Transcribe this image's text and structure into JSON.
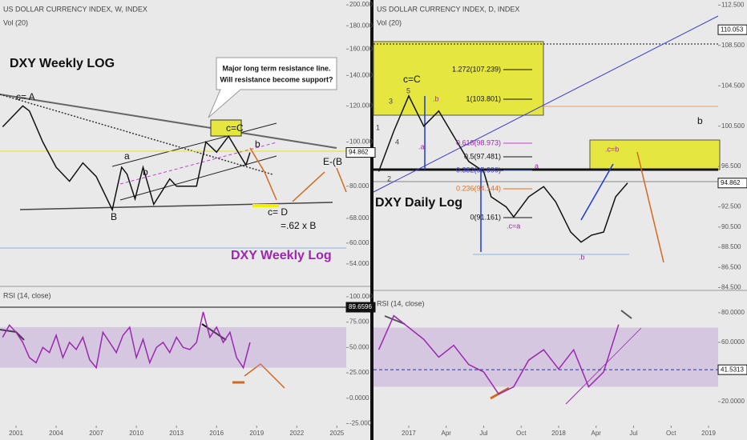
{
  "chart_data": [
    {
      "type": "line",
      "title": "US DOLLAR CURRENCY INDEX, W, INDEX",
      "subtitle": "Vol (20)",
      "log_scale": true,
      "color": "#111111",
      "x": [
        2000,
        2001.5,
        2002,
        2003,
        2004,
        2005,
        2006,
        2007,
        2008.2,
        2008.9,
        2009.3,
        2009.9,
        2010.5,
        2011.3,
        2012.5,
        2013,
        2014.5,
        2015.2,
        2016,
        2016.9,
        2017.9,
        2018.2,
        2018.5
      ],
      "values": [
        108,
        120,
        117,
        100,
        88,
        82,
        90,
        84,
        71,
        88,
        85,
        75,
        88,
        73,
        83,
        80,
        80,
        100,
        95,
        103,
        92,
        89,
        94.862
      ],
      "xlim": [
        1999.8,
        2025.7
      ],
      "ylim": [
        48.4,
        205
      ],
      "yticks": [
        {
          "value": 200,
          "label": "200.000"
        },
        {
          "value": 180,
          "label": "180.000"
        },
        {
          "value": 160,
          "label": "160.000"
        },
        {
          "value": 140,
          "label": "140.000"
        },
        {
          "value": 120,
          "label": "120.000"
        },
        {
          "value": 100,
          "label": "100.000"
        },
        {
          "value": 80,
          "label": "80.000"
        },
        {
          "value": 68,
          "label": "68.000"
        },
        {
          "value": 60,
          "label": "60.000"
        },
        {
          "value": 54,
          "label": "54.000"
        }
      ],
      "last_value": 94.862,
      "annotations": [
        "DXY  Weekly LOG",
        "Major long term resistance line.",
        "Will resistance become support?",
        "c= A",
        "a",
        "b",
        "B",
        "c=C",
        "b",
        "c= D",
        "=.62 x B",
        "E-(B",
        "DXY Weekly Log"
      ]
    },
    {
      "type": "line",
      "title": "RSI (14, close)",
      "color": "#9c27b0",
      "x": [
        2000,
        2000.5,
        2001,
        2001.5,
        2002,
        2002.5,
        2003,
        2003.5,
        2004,
        2004.5,
        2005,
        2005.5,
        2006,
        2006.5,
        2007,
        2007.5,
        2008,
        2008.5,
        2009,
        2009.5,
        2010,
        2010.5,
        2011,
        2011.5,
        2012,
        2012.5,
        2013,
        2013.5,
        2014,
        2014.5,
        2015,
        2015.5,
        2016,
        2016.5,
        2017,
        2017.5,
        2018,
        2018.5
      ],
      "values": [
        60,
        72,
        65,
        55,
        40,
        35,
        50,
        45,
        62,
        40,
        55,
        48,
        60,
        38,
        30,
        65,
        55,
        45,
        62,
        70,
        40,
        58,
        35,
        50,
        55,
        45,
        60,
        50,
        48,
        55,
        85,
        60,
        70,
        55,
        65,
        40,
        30,
        55
      ],
      "xlim": [
        1999.8,
        2025.7
      ],
      "ylim": [
        -27,
        108.6
      ],
      "yticks": [
        {
          "value": 100,
          "label": "100.000"
        },
        {
          "value": 75,
          "label": "75.000"
        },
        {
          "value": 50,
          "label": "50.000"
        },
        {
          "value": 25,
          "label": "25.000"
        },
        {
          "value": 0,
          "label": "0.0000"
        },
        {
          "value": -25,
          "label": "-25.000"
        }
      ],
      "xticks": [
        2001,
        2004,
        2007,
        2010,
        2013,
        2016,
        2019,
        2022,
        2025
      ],
      "level": 89.6596,
      "band": [
        30,
        70
      ],
      "annotations": []
    },
    {
      "type": "line",
      "title": "US DOLLAR CURRENCY INDEX, D, INDEX",
      "subtitle": "Vol (20)",
      "log_scale": false,
      "color": "#111111",
      "x": [
        2016.8,
        2016.9,
        2017.0,
        2017.1,
        2017.2,
        2017.3,
        2017.4,
        2017.5,
        2017.55,
        2017.65,
        2017.7,
        2017.8,
        2017.9,
        2017.98,
        2018.08,
        2018.15,
        2018.22,
        2018.3,
        2018.38,
        2018.46
      ],
      "values": [
        96,
        100,
        103.5,
        100.5,
        102,
        99.5,
        97,
        96,
        93.5,
        92.5,
        91.5,
        93.5,
        94.5,
        93,
        90,
        89,
        89.7,
        90,
        93.5,
        94.862
      ],
      "xlim": [
        2016.765,
        2019.064
      ],
      "ylim": [
        84.3,
        113
      ],
      "yticks": [
        {
          "value": 112.5,
          "label": "112.500"
        },
        {
          "value": 108.5,
          "label": "108.500"
        },
        {
          "value": 104.5,
          "label": "104.500"
        },
        {
          "value": 100.5,
          "label": "100.500"
        },
        {
          "value": 96.5,
          "label": "96.500"
        },
        {
          "value": 92.5,
          "label": "92.500"
        },
        {
          "value": 90.5,
          "label": "90.500"
        },
        {
          "value": 88.5,
          "label": "88.500"
        },
        {
          "value": 86.5,
          "label": "86.500"
        },
        {
          "value": 84.5,
          "label": "84.500"
        }
      ],
      "last_value": 94.862,
      "level": 110.053,
      "annotations": [
        "1.272(107.239)",
        "1(103.801)",
        "0.618(98.973)",
        "0.5(97.481)",
        "0.382(95.990)",
        "0.236(94.144)",
        "0(91.161)",
        "c=C",
        "5",
        "3",
        "4",
        "1",
        "2",
        ".b",
        ".a",
        ".c=a",
        "a",
        ".c=b",
        "b",
        ".b",
        "DXY Daily Log"
      ]
    },
    {
      "type": "line",
      "title": "RSI (14, close)",
      "color": "#9c27b0",
      "x": [
        2016.8,
        2016.9,
        2017.0,
        2017.1,
        2017.2,
        2017.3,
        2017.4,
        2017.5,
        2017.6,
        2017.7,
        2017.8,
        2017.9,
        2018.0,
        2018.1,
        2018.2,
        2018.3,
        2018.4
      ],
      "values": [
        55,
        78,
        70,
        62,
        50,
        58,
        45,
        40,
        25,
        30,
        48,
        55,
        42,
        55,
        30,
        40,
        72
      ],
      "xlim": [
        2016.765,
        2019.064
      ],
      "ylim": [
        3.8,
        94
      ],
      "yticks": [
        {
          "value": 80,
          "label": "80.0000"
        },
        {
          "value": 60,
          "label": "60.0000"
        },
        {
          "value": 20,
          "label": "20.0000"
        }
      ],
      "xticks": [
        2017,
        {
          "value": 2017.25,
          "label": "Apr"
        },
        {
          "value": 2017.5,
          "label": "Jul"
        },
        {
          "value": 2017.75,
          "label": "Oct"
        },
        2018,
        {
          "value": 2018.25,
          "label": "Apr"
        },
        {
          "value": 2018.5,
          "label": "Jul"
        },
        {
          "value": 2018.75,
          "label": "Oct"
        },
        2019
      ],
      "level": 41.5313,
      "band": [
        30,
        70
      ],
      "annotations": []
    }
  ]
}
